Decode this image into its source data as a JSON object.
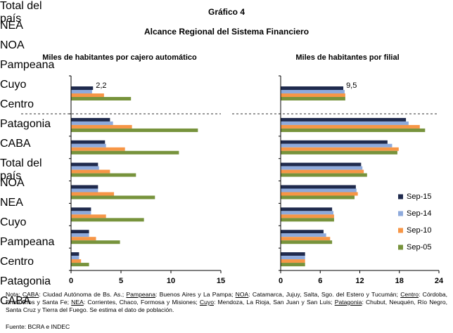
{
  "header": {
    "title": "Gráfico 4",
    "subtitle": "Alcance Regional del Sistema Financiero"
  },
  "chart_data": [
    {
      "type": "barh",
      "title": "Miles de habitantes por cajero automático",
      "categories": [
        "Total del país",
        "NEA",
        "NOA",
        "Pampeana",
        "Cuyo",
        "Centro",
        "Patagonia",
        "CABA"
      ],
      "series": [
        {
          "color": "#1f2a4d",
          "values": [
            2.2,
            3.9,
            3.4,
            2.7,
            2.7,
            2.0,
            1.8,
            0.8
          ],
          "value_labels": [
            "2,2",
            null,
            null,
            null,
            null,
            null,
            null,
            null
          ]
        },
        {
          "color": "#8eaadc",
          "values": [
            2.1,
            4.2,
            3.5,
            2.8,
            2.7,
            2.0,
            1.8,
            0.8
          ]
        },
        {
          "color": "#f79646",
          "values": [
            3.3,
            6.1,
            5.4,
            3.9,
            4.3,
            3.5,
            2.5,
            1.0
          ]
        },
        {
          "color": "#77933c",
          "values": [
            6.0,
            12.7,
            10.8,
            6.5,
            8.4,
            7.3,
            4.9,
            1.8
          ]
        }
      ],
      "xlim": [
        0,
        15
      ],
      "xticks": [
        0,
        5,
        10,
        15
      ],
      "grid": false
    },
    {
      "type": "barh",
      "title": "Miles de habitantes por filial",
      "categories": [
        "Total del país",
        "NOA",
        "NEA",
        "Cuyo",
        "Pampeana",
        "Centro",
        "Patagonia",
        "CABA"
      ],
      "series": [
        {
          "name": "Sep-15",
          "color": "#1f2a4d",
          "values": [
            9.5,
            19.0,
            16.2,
            12.2,
            11.4,
            7.8,
            6.5,
            3.7
          ],
          "value_labels": [
            "9,5",
            null,
            null,
            null,
            null,
            null,
            null,
            null
          ]
        },
        {
          "name": "Sep-14",
          "color": "#8eaadc",
          "values": [
            9.7,
            19.4,
            16.9,
            12.4,
            11.5,
            8.0,
            6.9,
            3.7
          ]
        },
        {
          "name": "Sep-10",
          "color": "#f79646",
          "values": [
            9.8,
            21.1,
            17.9,
            12.6,
            11.7,
            8.1,
            7.5,
            3.7
          ]
        },
        {
          "name": "Sep-05",
          "color": "#77933c",
          "values": [
            9.8,
            21.9,
            17.7,
            13.1,
            11.2,
            8.1,
            7.8,
            3.7
          ]
        }
      ],
      "xlim": [
        0,
        24
      ],
      "xticks": [
        0,
        6,
        12,
        18,
        24
      ],
      "grid": false,
      "legend": "right"
    }
  ],
  "note": {
    "prefix": "Nota:",
    "items": [
      {
        "term": "CABA",
        "text": ": Ciudad Autónoma de Bs. As.;"
      },
      {
        "term": "Pampeana",
        "text": ": Buenos Aires y La Pampa;"
      },
      {
        "term": "NOA",
        "text": ": Catamarca, Jujuy, Salta, Sgo. del Estero y Tucumán;"
      },
      {
        "term": "Centro",
        "text": ": Córdoba, Entre Ríos y Santa Fe;"
      },
      {
        "term": "NEA",
        "text": ": Corrientes, Chaco, Formosa y Misiones;"
      },
      {
        "term": "Cuyo",
        "text": ": Mendoza, La Rioja, San Juan y San Luis;"
      },
      {
        "term": "Patagonia",
        "text": ": Chubut, Neuquén, Río Negro, Santa Cruz y Tierra del Fuego."
      }
    ],
    "suffix": "Se estima el dato de población."
  },
  "source": "Fuente: BCRA e INDEC"
}
